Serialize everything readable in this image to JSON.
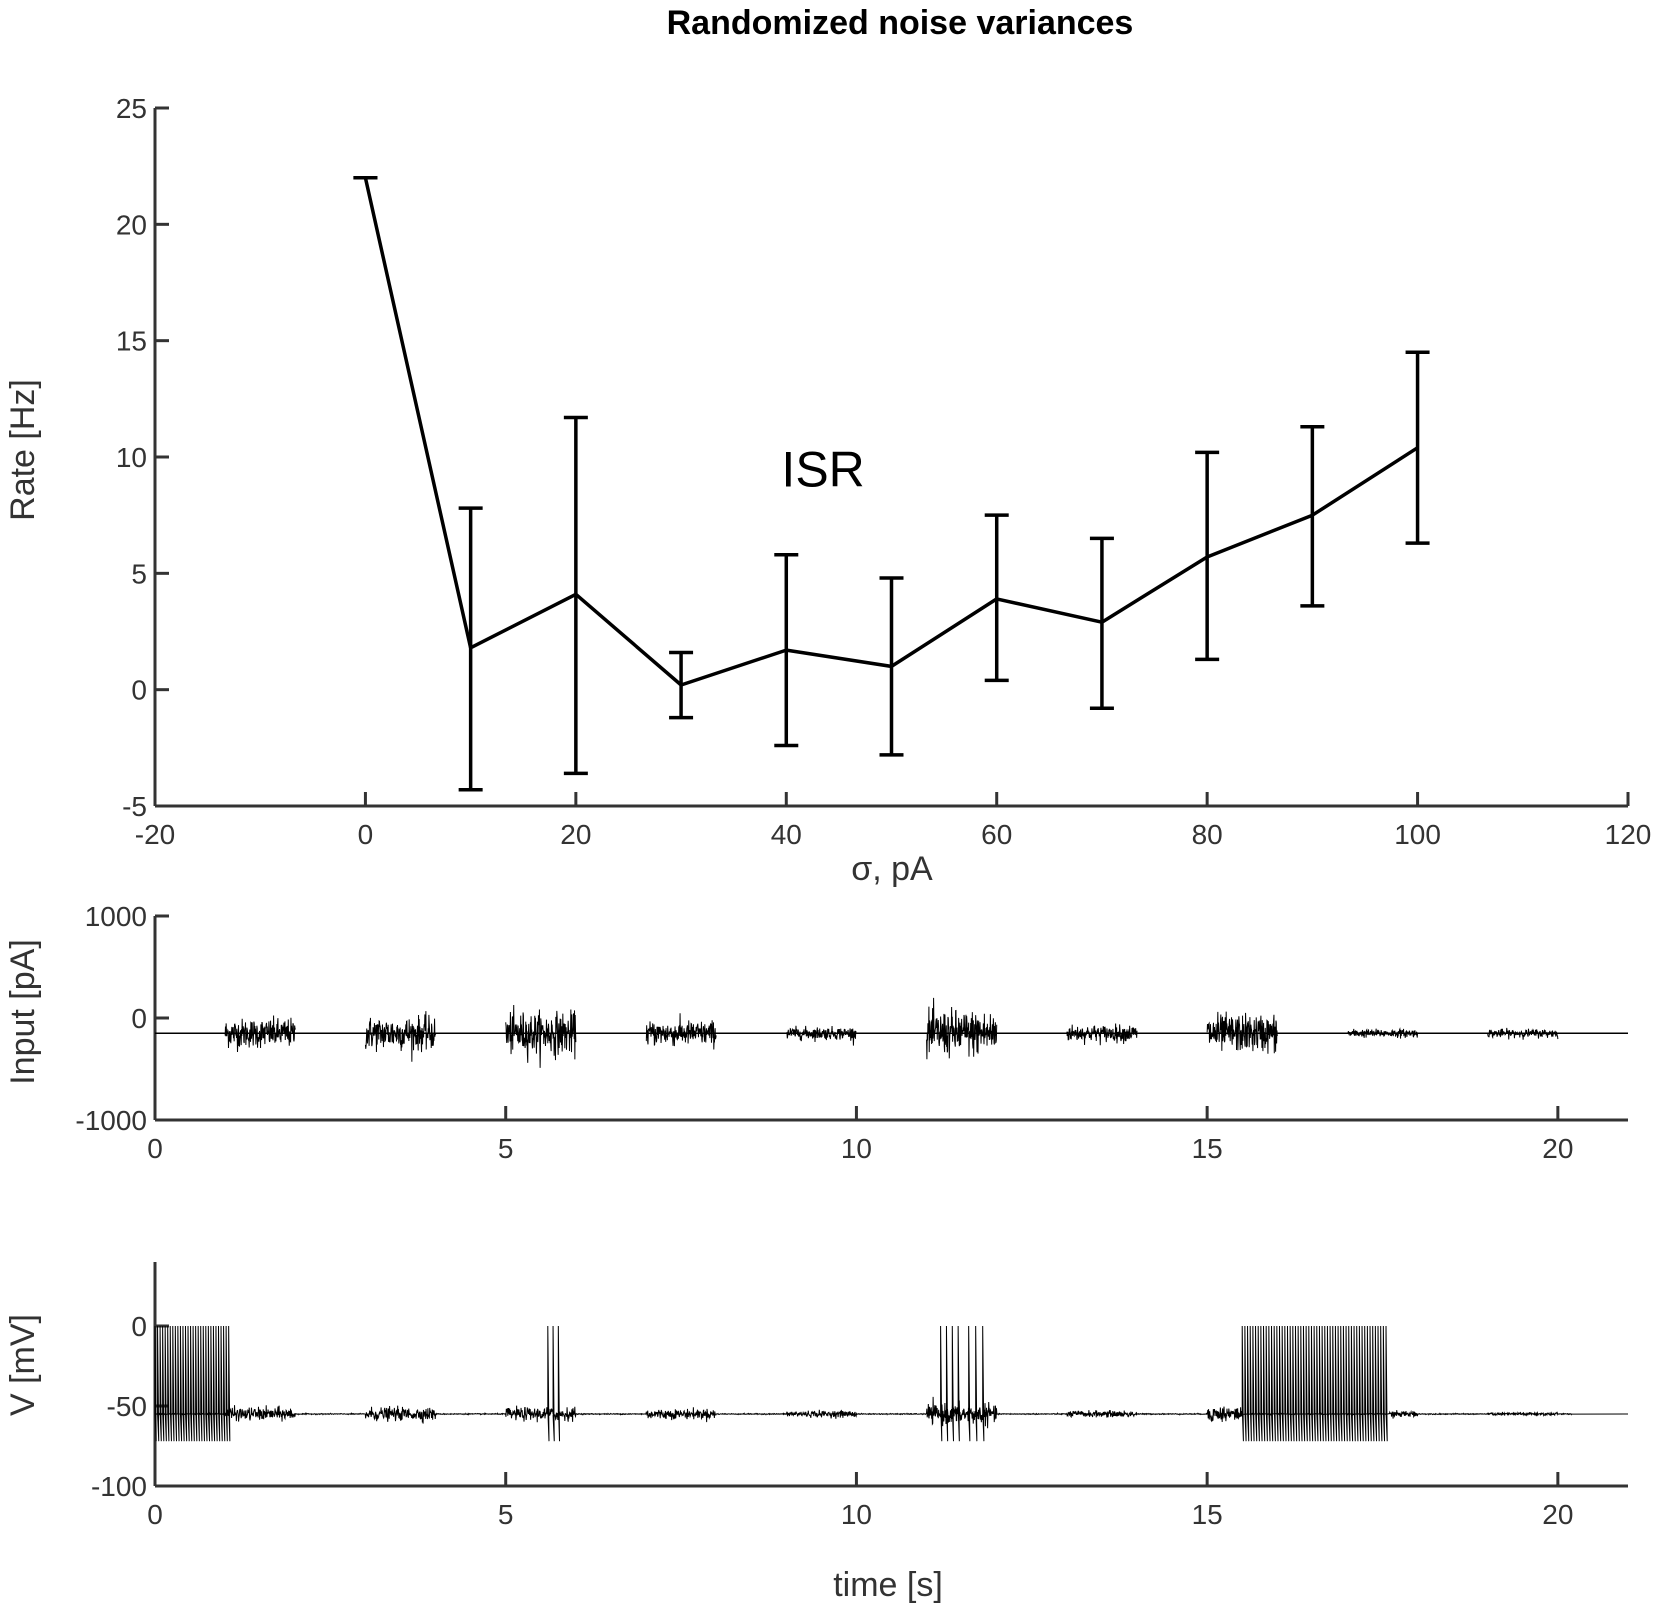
{
  "title": "Randomized noise variances",
  "chart_data": [
    {
      "id": "rate",
      "type": "line",
      "xlabel": "σ, pA",
      "ylabel": "Rate [Hz]",
      "xlim": [
        -20,
        120
      ],
      "ylim": [
        -5,
        25
      ],
      "xticks": [
        -20,
        0,
        20,
        40,
        60,
        80,
        100,
        120
      ],
      "yticks": [
        -5,
        0,
        5,
        10,
        15,
        20,
        25
      ],
      "x": [
        0,
        10,
        20,
        30,
        40,
        50,
        60,
        70,
        80,
        90,
        100
      ],
      "y": [
        22.0,
        1.8,
        4.1,
        0.2,
        1.7,
        1.0,
        3.9,
        2.9,
        5.7,
        7.5,
        10.4
      ],
      "err_low": [
        22.0,
        -4.3,
        -3.6,
        -1.2,
        -2.4,
        -2.8,
        0.4,
        -0.8,
        1.3,
        3.6,
        6.3
      ],
      "err_high": [
        22.0,
        7.8,
        11.7,
        1.6,
        5.8,
        4.8,
        7.5,
        6.5,
        10.2,
        11.3,
        14.5
      ],
      "annotations": [
        {
          "text": "ISR",
          "x": 43.5,
          "y": 9.5
        }
      ],
      "grid": false
    },
    {
      "id": "input",
      "type": "line",
      "xlabel": "",
      "ylabel": "Input [pA]",
      "xlim": [
        0,
        21
      ],
      "ylim": [
        -1000,
        1000
      ],
      "xticks": [
        0,
        5,
        10,
        15,
        20
      ],
      "yticks": [
        -1000,
        0,
        1000
      ],
      "baseline": -150,
      "noise_segments": [
        {
          "t0": 1,
          "t1": 2,
          "sigma": 70
        },
        {
          "t0": 3,
          "t1": 4,
          "sigma": 80
        },
        {
          "t0": 5,
          "t1": 6,
          "sigma": 100
        },
        {
          "t0": 7,
          "t1": 8,
          "sigma": 60
        },
        {
          "t0": 9,
          "t1": 10,
          "sigma": 30
        },
        {
          "t0": 11,
          "t1": 12,
          "sigma": 110
        },
        {
          "t0": 13,
          "t1": 14,
          "sigma": 40
        },
        {
          "t0": 15,
          "t1": 16,
          "sigma": 90
        },
        {
          "t0": 17,
          "t1": 18,
          "sigma": 20
        },
        {
          "t0": 19,
          "t1": 20,
          "sigma": 20
        }
      ],
      "grid": false
    },
    {
      "id": "voltage",
      "type": "line",
      "xlabel": "time [s]",
      "ylabel": "V [mV]",
      "xlim": [
        0,
        21
      ],
      "ylim": [
        -100,
        40
      ],
      "xticks": [
        0,
        5,
        10,
        15,
        20
      ],
      "yticks": [
        -100,
        -50,
        0
      ],
      "rest": -55,
      "spike_peak": 0,
      "spike_trough": -72,
      "noise_segments": [
        {
          "t0": 1,
          "t1": 2,
          "amp": 2
        },
        {
          "t0": 3,
          "t1": 4,
          "amp": 2
        },
        {
          "t0": 5,
          "t1": 6,
          "amp": 2
        },
        {
          "t0": 7,
          "t1": 8,
          "amp": 1.5
        },
        {
          "t0": 9,
          "t1": 10,
          "amp": 1
        },
        {
          "t0": 11,
          "t1": 12,
          "amp": 3
        },
        {
          "t0": 13,
          "t1": 14,
          "amp": 1
        },
        {
          "t0": 15,
          "t1": 15.5,
          "amp": 2.5
        },
        {
          "t0": 17.6,
          "t1": 18,
          "amp": 1
        },
        {
          "t0": 19,
          "t1": 20,
          "amp": 0.5
        }
      ],
      "spike_bursts": [
        {
          "t0": 0.0,
          "t1": 1.05,
          "count": 30
        },
        {
          "t0": 5.6,
          "t1": 5.75,
          "count": 3
        },
        {
          "t0": 11.2,
          "t1": 11.45,
          "count": 4
        },
        {
          "t0": 11.6,
          "t1": 11.8,
          "count": 3
        },
        {
          "t0": 15.5,
          "t1": 17.55,
          "count": 55
        }
      ],
      "grid": false
    }
  ]
}
